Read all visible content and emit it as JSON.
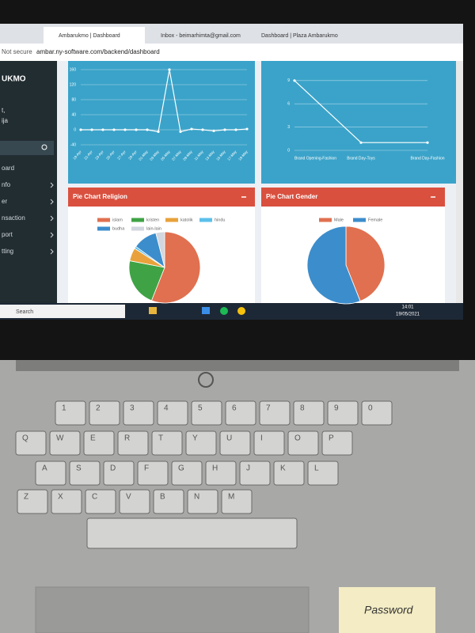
{
  "browser": {
    "tabs": [
      "Ambarukmo | Dashboard",
      "Inbox - beimarhimta@gmail.com",
      "Dashboard | Plaza Ambarukmo"
    ],
    "security": "Not secure",
    "url": "ambar.ny-software.com/backend/dashboard"
  },
  "sidebar": {
    "brand": "UKMO",
    "user": [
      "t,",
      "ija"
    ],
    "items": [
      "oard",
      "nfo",
      "er",
      "nsaction",
      "port",
      "tting"
    ]
  },
  "chart_data": [
    {
      "type": "line",
      "color": "#ffffff",
      "categories": [
        "19-Apr",
        "21-Apr",
        "23-Apr",
        "25-Apr",
        "27-Apr",
        "29-Apr",
        "01-May",
        "03-May",
        "05-May",
        "07-May",
        "09-May",
        "11-May",
        "13-May",
        "15-May",
        "17-May",
        "19-May"
      ],
      "values": [
        0,
        0,
        0,
        0,
        0,
        0,
        0,
        -5,
        160,
        -5,
        2,
        0,
        -3,
        0,
        0,
        2
      ],
      "ylim": [
        -40,
        160
      ],
      "yticks": [
        160,
        120,
        80,
        40,
        0,
        -40
      ],
      "grid": true
    },
    {
      "type": "line",
      "color": "#ffffff",
      "categories": [
        "Brand Opening-Fashion",
        "Brand Day-Toys",
        "Brand Day-Fashion"
      ],
      "values": [
        9,
        1,
        1
      ],
      "ylim": [
        0,
        10
      ],
      "yticks": [
        0,
        3,
        6,
        9
      ],
      "grid": true
    },
    {
      "type": "pie",
      "title": "Pie Chart Religion",
      "categories": [
        "islam",
        "kristen",
        "katolik",
        "hindu",
        "budha",
        "lain-lain"
      ],
      "values": [
        56,
        22,
        6,
        1,
        11,
        4
      ],
      "colors": [
        "#e0704f",
        "#3fa345",
        "#e9a23b",
        "#5bc0eb",
        "#3c8dcc",
        "#d2d6de"
      ]
    },
    {
      "type": "pie",
      "title": "Pie Chart Gender",
      "categories": [
        "Male",
        "Female"
      ],
      "values": [
        44,
        56
      ],
      "colors": [
        "#e0704f",
        "#3c8dcc"
      ]
    }
  ],
  "taskbar": {
    "search": "Search",
    "time": "14:01",
    "date": "19/05/2021"
  },
  "keyboard": {
    "rows": [
      [
        "1",
        "2",
        "3",
        "4",
        "5",
        "6",
        "7",
        "8",
        "9",
        "0"
      ],
      [
        "Q",
        "W",
        "E",
        "R",
        "T",
        "Y",
        "U",
        "I",
        "O",
        "P"
      ],
      [
        "A",
        "S",
        "D",
        "F",
        "G",
        "H",
        "J",
        "K",
        "L"
      ],
      [
        "Z",
        "X",
        "C",
        "V",
        "B",
        "N",
        "M"
      ]
    ]
  },
  "note": "Password"
}
